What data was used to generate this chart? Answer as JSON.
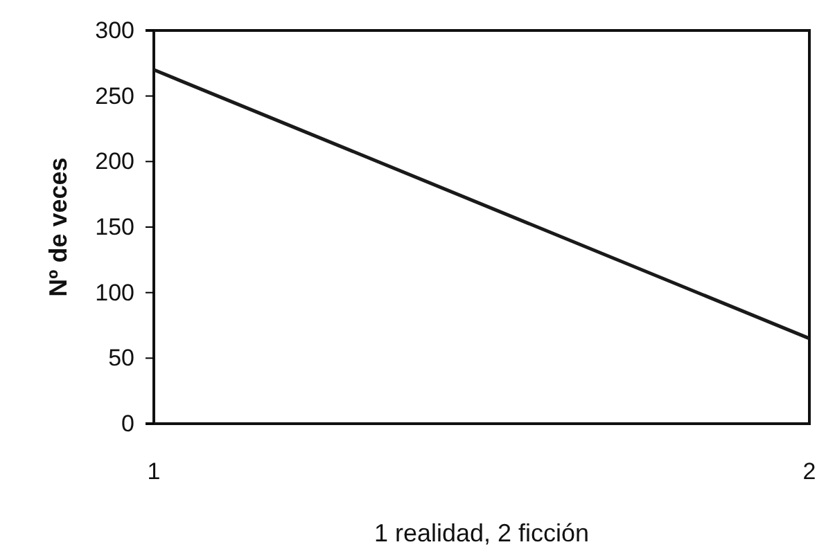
{
  "chart_data": {
    "type": "line",
    "xlabel": "1 realidad, 2 ficción",
    "ylabel": "Nº de veces",
    "x": [
      1,
      2
    ],
    "values": [
      270,
      65
    ],
    "color": "#1a1a1a",
    "xlim": [
      1,
      2
    ],
    "xticks": [
      1,
      2
    ],
    "ylim": [
      0,
      300
    ],
    "yticks": [
      0,
      50,
      100,
      150,
      200,
      250,
      300
    ],
    "grid": false,
    "marker": "none",
    "line_style": "solid"
  }
}
